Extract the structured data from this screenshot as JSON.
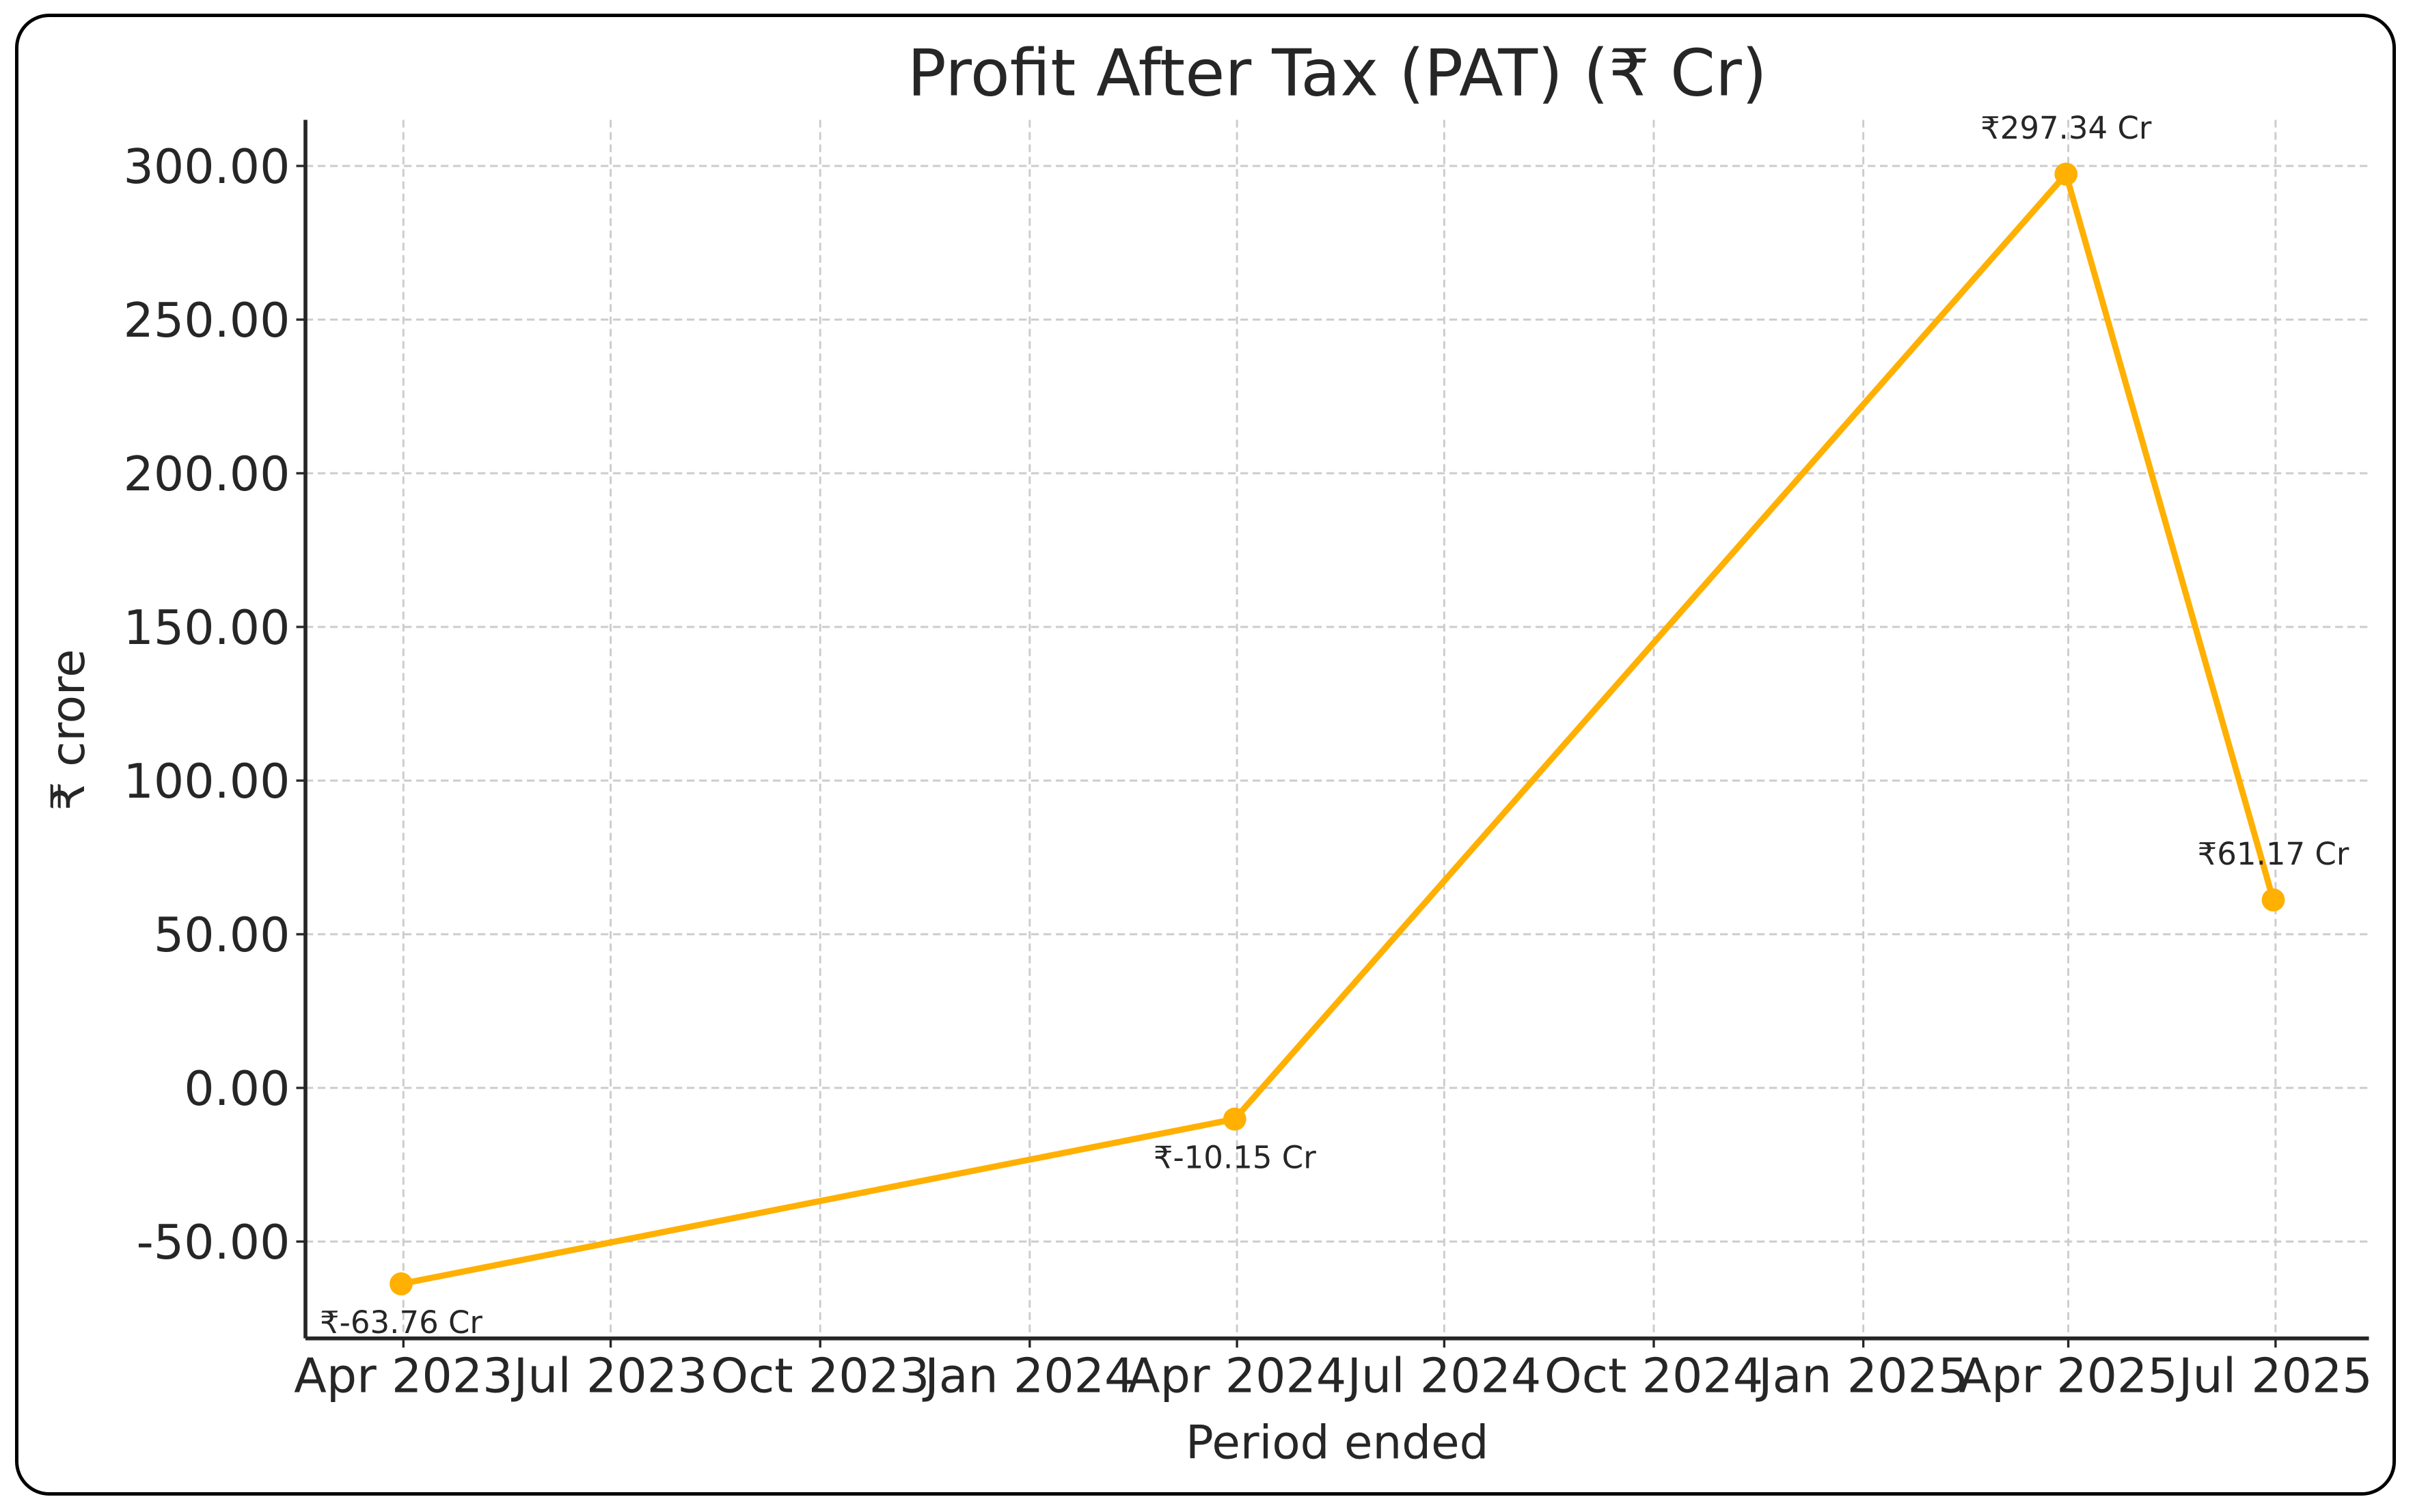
{
  "chart_data": {
    "type": "line",
    "title": "Profit After Tax (PAT) (₹ Cr)",
    "xlabel": "Period ended",
    "ylabel": "₹ crore",
    "x": [
      "2023-03-31",
      "2024-03-31",
      "2025-03-31",
      "2025-06-30"
    ],
    "series": [
      {
        "values": [
          -63.76,
          -10.15,
          297.34,
          61.17
        ],
        "color": "#FFB000"
      }
    ],
    "data_labels": [
      "₹-63.76 Cr",
      "₹-10.15 Cr",
      "₹297.34 Cr",
      "₹61.17 Cr"
    ],
    "ylim": [
      -81.5,
      315
    ],
    "xlim": [
      "2023-02-17",
      "2025-08-11"
    ],
    "yticks": [
      -50,
      0,
      50,
      100,
      150,
      200,
      250,
      300
    ],
    "ytick_labels": [
      "-50.00",
      "0.00",
      "50.00",
      "100.00",
      "150.00",
      "200.00",
      "250.00",
      "300.00"
    ],
    "xticks": [
      "2023-04-01",
      "2023-07-01",
      "2023-10-01",
      "2024-01-01",
      "2024-04-01",
      "2024-07-01",
      "2024-10-01",
      "2025-01-01",
      "2025-04-01",
      "2025-07-01"
    ],
    "xtick_labels": [
      "Apr 2023",
      "Jul 2023",
      "Oct 2023",
      "Jan 2024",
      "Apr 2024",
      "Jul 2024",
      "Oct 2024",
      "Jan 2025",
      "Apr 2025",
      "Jul 2025"
    ],
    "grid": true,
    "grid_color": "#cccccc"
  }
}
